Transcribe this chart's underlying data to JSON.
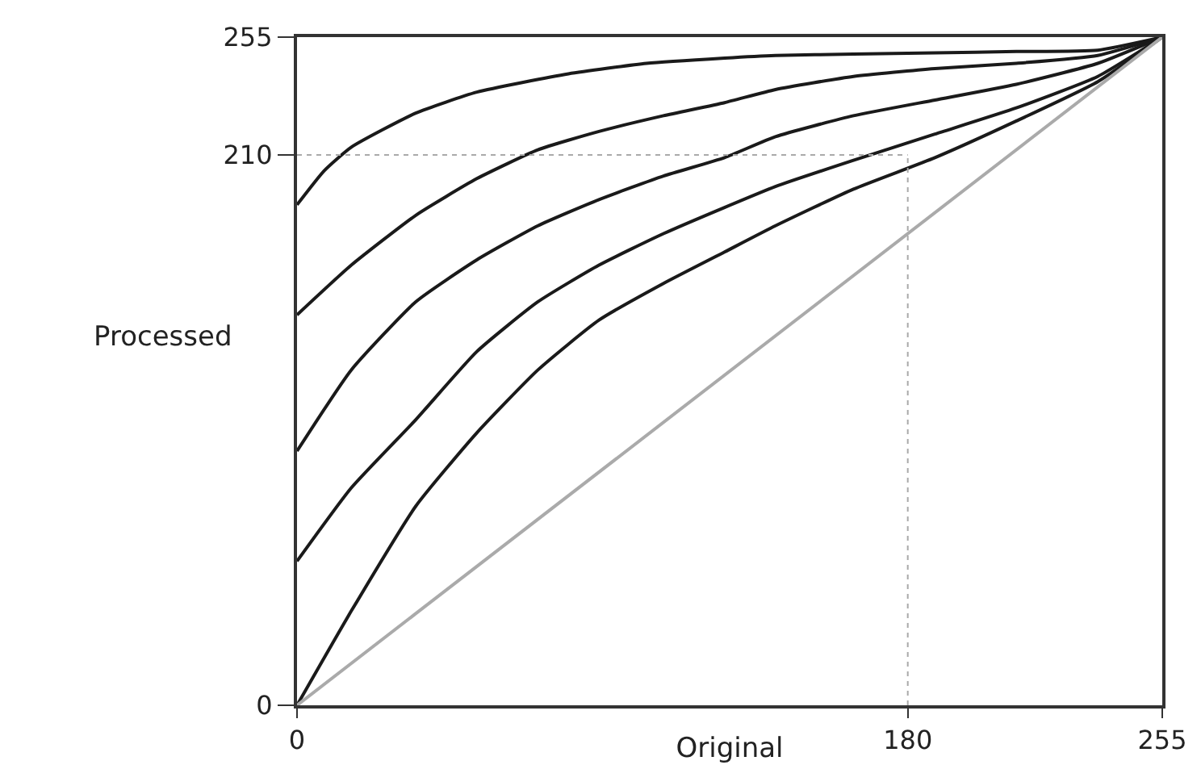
{
  "chart_data": {
    "type": "line",
    "xlabel": "Original",
    "ylabel": "Processed",
    "xlim": [
      0,
      255
    ],
    "ylim": [
      0,
      255
    ],
    "xticks": [
      0,
      180,
      255
    ],
    "yticks": [
      0,
      210,
      255
    ],
    "grid": false,
    "marker": "none",
    "line_style": "solid",
    "series": [
      {
        "color": "#1a1a1a",
        "x": [
          0,
          8,
          16,
          35,
          53,
          80,
          103,
          126,
          141,
          164,
          188,
          212,
          236,
          255
        ],
        "values": [
          191,
          204,
          213,
          226,
          234,
          241,
          245,
          247,
          248,
          248.5,
          249,
          249.5,
          250,
          255
        ]
      },
      {
        "color": "#1a1a1a",
        "x": [
          0,
          16,
          35,
          53,
          71,
          89,
          108,
          126,
          141,
          164,
          188,
          212,
          236,
          255
        ],
        "values": [
          149,
          168,
          187,
          201,
          212,
          219,
          225,
          230,
          235,
          240,
          243,
          245,
          248,
          255
        ]
      },
      {
        "color": "#1a1a1a",
        "x": [
          0,
          16,
          35,
          53,
          71,
          89,
          108,
          126,
          141,
          164,
          188,
          212,
          236,
          255
        ],
        "values": [
          97,
          128,
          154,
          170,
          183,
          193,
          202,
          209,
          217,
          225,
          231,
          237,
          245,
          255
        ]
      },
      {
        "color": "#1a1a1a",
        "x": [
          0,
          16,
          35,
          53,
          71,
          89,
          108,
          126,
          141,
          164,
          188,
          212,
          236,
          255
        ],
        "values": [
          55,
          83,
          109,
          135,
          154,
          168,
          180,
          190,
          198,
          208,
          218,
          228,
          240,
          255
        ]
      },
      {
        "color": "#1a1a1a",
        "x": [
          0,
          16,
          35,
          53,
          71,
          89,
          108,
          126,
          141,
          164,
          188,
          212,
          236,
          255
        ],
        "values": [
          0,
          36,
          76,
          104,
          128,
          147,
          161,
          173,
          183,
          197,
          209,
          223,
          238,
          255
        ]
      },
      {
        "color": "#aaaaaa",
        "x": [
          0,
          255
        ],
        "values": [
          0,
          255
        ]
      }
    ],
    "ref_lines": [
      {
        "axis": "y",
        "value": 210,
        "label": null,
        "color": "#aaaaaa",
        "line_style": "dotted"
      },
      {
        "axis": "x",
        "value": 180,
        "label": null,
        "color": "#aaaaaa",
        "line_style": "dotted"
      }
    ]
  }
}
